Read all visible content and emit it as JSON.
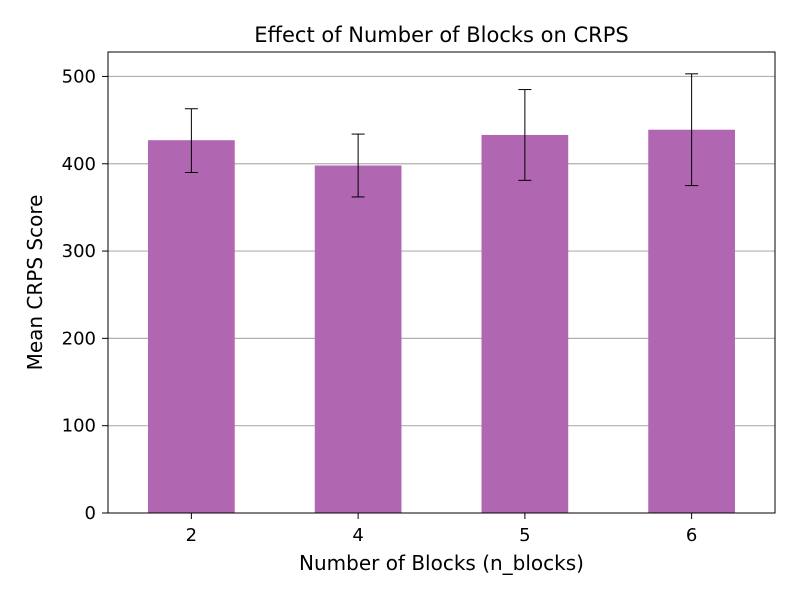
{
  "chart_data": {
    "type": "bar",
    "title": "Effect of Number of Blocks on CRPS",
    "xlabel": "Number of Blocks (n_blocks)",
    "ylabel": "Mean CRPS Score",
    "categories": [
      "2",
      "4",
      "5",
      "6"
    ],
    "values": [
      427,
      398,
      433,
      439
    ],
    "error_low": [
      390,
      362,
      381,
      375
    ],
    "error_high": [
      463,
      434,
      485,
      503
    ],
    "ylim": [
      0,
      528
    ],
    "yticks": [
      0,
      100,
      200,
      300,
      400,
      500
    ],
    "grid": "y",
    "bar_color": "#b066b0",
    "error_color": "#000000",
    "grid_color": "#b0b0b0"
  }
}
